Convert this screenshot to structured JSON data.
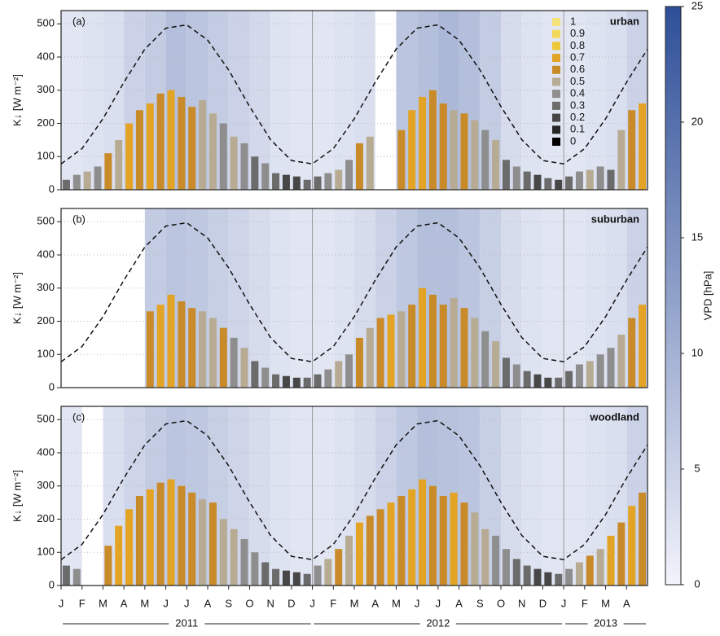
{
  "chart_data": [
    {
      "type": "bar",
      "label": "(a)",
      "site": "urban",
      "ylabel": "K↓ [W m⁻²]",
      "ylim": [
        0,
        540
      ],
      "yticks": [
        0,
        100,
        200,
        300,
        400,
        500
      ],
      "xlim": [
        0,
        28
      ],
      "x": [
        0.25,
        0.75,
        1.25,
        1.75,
        2.25,
        2.75,
        3.25,
        3.75,
        4.25,
        4.75,
        5.25,
        5.75,
        6.25,
        6.75,
        7.25,
        7.75,
        8.25,
        8.75,
        9.25,
        9.75,
        10.25,
        10.75,
        11.25,
        11.75,
        12.25,
        12.75,
        13.25,
        13.75,
        14.25,
        14.75,
        15.25,
        15.75,
        16.25,
        16.75,
        17.25,
        17.75,
        18.25,
        18.75,
        19.25,
        19.75,
        20.25,
        20.75,
        21.25,
        21.75,
        22.25,
        22.75,
        23.25,
        23.75,
        24.25,
        24.75,
        25.25,
        25.75,
        26.25,
        26.75,
        27.25,
        27.75
      ],
      "values": [
        30,
        45,
        55,
        70,
        110,
        150,
        200,
        240,
        260,
        290,
        300,
        280,
        250,
        270,
        230,
        200,
        160,
        140,
        100,
        80,
        50,
        45,
        40,
        30,
        40,
        50,
        60,
        90,
        140,
        160,
        null,
        null,
        180,
        240,
        280,
        300,
        260,
        240,
        230,
        210,
        180,
        150,
        90,
        70,
        55,
        45,
        35,
        30,
        40,
        55,
        60,
        70,
        60,
        180,
        240,
        260
      ],
      "ratio": [
        0.3,
        0.4,
        0.5,
        0.4,
        0.6,
        0.5,
        0.7,
        0.6,
        0.7,
        0.6,
        0.7,
        0.6,
        0.6,
        0.5,
        0.5,
        0.4,
        0.5,
        0.4,
        0.3,
        0.4,
        0.3,
        0.2,
        0.2,
        0.3,
        0.3,
        0.4,
        0.5,
        0.4,
        0.6,
        0.5,
        null,
        null,
        0.6,
        0.7,
        0.7,
        0.6,
        0.6,
        0.5,
        0.6,
        0.5,
        0.4,
        0.5,
        0.3,
        0.4,
        0.3,
        0.2,
        0.3,
        0.2,
        0.3,
        0.4,
        0.5,
        0.4,
        0.3,
        0.5,
        0.6,
        0.7
      ],
      "vpd_x": [
        0,
        1,
        2,
        3,
        4,
        5,
        6,
        7,
        8,
        9,
        10,
        11,
        12,
        13,
        14,
        15,
        16,
        17,
        18,
        19,
        20,
        21,
        22,
        23,
        24,
        25,
        26,
        27
      ],
      "vpd": [
        2,
        2.5,
        3,
        5,
        6,
        8,
        7,
        6,
        5,
        4,
        2.5,
        2,
        2,
        2.5,
        3,
        null,
        7,
        8,
        9,
        8,
        6,
        3.5,
        2.5,
        2,
        2,
        2.5,
        3,
        5
      ],
      "line": {
        "x": [
          0,
          1,
          2,
          3,
          4,
          5,
          6,
          7,
          8,
          9,
          10,
          11,
          12,
          13,
          14,
          15,
          16,
          17,
          18,
          19,
          20,
          21,
          22,
          23,
          24,
          25,
          26,
          27,
          28
        ],
        "values": [
          78,
          124,
          214,
          324,
          424,
          487,
          497,
          451,
          361,
          251,
          151,
          88,
          78,
          124,
          214,
          324,
          424,
          487,
          497,
          451,
          361,
          251,
          151,
          88,
          78,
          124,
          214,
          324,
          424
        ]
      }
    },
    {
      "type": "bar",
      "label": "(b)",
      "site": "suburban",
      "ylabel": "K↓ [W m⁻²]",
      "ylim": [
        0,
        540
      ],
      "yticks": [
        0,
        100,
        200,
        300,
        400,
        500
      ],
      "xlim": [
        0,
        28
      ],
      "x": [
        0.25,
        0.75,
        1.25,
        1.75,
        2.25,
        2.75,
        3.25,
        3.75,
        4.25,
        4.75,
        5.25,
        5.75,
        6.25,
        6.75,
        7.25,
        7.75,
        8.25,
        8.75,
        9.25,
        9.75,
        10.25,
        10.75,
        11.25,
        11.75,
        12.25,
        12.75,
        13.25,
        13.75,
        14.25,
        14.75,
        15.25,
        15.75,
        16.25,
        16.75,
        17.25,
        17.75,
        18.25,
        18.75,
        19.25,
        19.75,
        20.25,
        20.75,
        21.25,
        21.75,
        22.25,
        22.75,
        23.25,
        23.75,
        24.25,
        24.75,
        25.25,
        25.75,
        26.25,
        26.75,
        27.25,
        27.75
      ],
      "values": [
        null,
        null,
        null,
        null,
        null,
        null,
        null,
        null,
        230,
        250,
        280,
        260,
        240,
        230,
        210,
        180,
        150,
        120,
        80,
        60,
        40,
        35,
        30,
        30,
        40,
        55,
        80,
        100,
        150,
        180,
        210,
        220,
        230,
        250,
        300,
        280,
        250,
        270,
        240,
        210,
        170,
        140,
        90,
        70,
        50,
        40,
        30,
        30,
        50,
        70,
        80,
        100,
        120,
        160,
        210,
        250
      ],
      "ratio": [
        null,
        null,
        null,
        null,
        null,
        null,
        null,
        null,
        0.6,
        0.7,
        0.7,
        0.6,
        0.6,
        0.5,
        0.5,
        0.6,
        0.4,
        0.5,
        0.3,
        0.4,
        0.3,
        0.2,
        0.2,
        0.3,
        0.3,
        0.4,
        0.5,
        0.4,
        0.6,
        0.5,
        0.6,
        0.7,
        0.5,
        0.6,
        0.7,
        0.6,
        0.6,
        0.5,
        0.6,
        0.5,
        0.4,
        0.5,
        0.3,
        0.4,
        0.3,
        0.2,
        0.2,
        0.3,
        0.3,
        0.4,
        0.5,
        0.4,
        0.4,
        0.5,
        0.6,
        0.7
      ],
      "vpd_x": [
        0,
        1,
        2,
        3,
        4,
        5,
        6,
        7,
        8,
        9,
        10,
        11,
        12,
        13,
        14,
        15,
        16,
        17,
        18,
        19,
        20,
        21,
        22,
        23,
        24,
        25,
        26,
        27
      ],
      "vpd": [
        null,
        null,
        null,
        null,
        6,
        7,
        6.5,
        5.5,
        4.5,
        3.5,
        2.5,
        2,
        2,
        2.5,
        3.5,
        5,
        6.5,
        8,
        8,
        7,
        5.5,
        3.5,
        2.5,
        2,
        2,
        2.5,
        3,
        5
      ],
      "line": {
        "x": [
          0,
          1,
          2,
          3,
          4,
          5,
          6,
          7,
          8,
          9,
          10,
          11,
          12,
          13,
          14,
          15,
          16,
          17,
          18,
          19,
          20,
          21,
          22,
          23,
          24,
          25,
          26,
          27,
          28
        ],
        "values": [
          78,
          124,
          214,
          324,
          424,
          487,
          497,
          451,
          361,
          251,
          151,
          88,
          78,
          124,
          214,
          324,
          424,
          487,
          497,
          451,
          361,
          251,
          151,
          88,
          78,
          124,
          214,
          324,
          424
        ]
      }
    },
    {
      "type": "bar",
      "label": "(c)",
      "site": "woodland",
      "ylabel": "K↓ [W m⁻²]",
      "ylim": [
        0,
        540
      ],
      "yticks": [
        0,
        100,
        200,
        300,
        400,
        500
      ],
      "xlim": [
        0,
        28
      ],
      "x": [
        0.25,
        0.75,
        1.25,
        1.75,
        2.25,
        2.75,
        3.25,
        3.75,
        4.25,
        4.75,
        5.25,
        5.75,
        6.25,
        6.75,
        7.25,
        7.75,
        8.25,
        8.75,
        9.25,
        9.75,
        10.25,
        10.75,
        11.25,
        11.75,
        12.25,
        12.75,
        13.25,
        13.75,
        14.25,
        14.75,
        15.25,
        15.75,
        16.25,
        16.75,
        17.25,
        17.75,
        18.25,
        18.75,
        19.25,
        19.75,
        20.25,
        20.75,
        21.25,
        21.75,
        22.25,
        22.75,
        23.25,
        23.75,
        24.25,
        24.75,
        25.25,
        25.75,
        26.25,
        26.75,
        27.25,
        27.75
      ],
      "values": [
        60,
        50,
        null,
        null,
        120,
        180,
        230,
        270,
        290,
        310,
        320,
        300,
        280,
        260,
        250,
        200,
        170,
        140,
        100,
        70,
        50,
        45,
        40,
        35,
        60,
        80,
        110,
        150,
        190,
        210,
        230,
        250,
        270,
        290,
        320,
        300,
        270,
        280,
        250,
        220,
        170,
        150,
        110,
        80,
        60,
        50,
        40,
        35,
        50,
        70,
        90,
        110,
        150,
        190,
        240,
        280
      ],
      "ratio": [
        0.3,
        0.4,
        null,
        null,
        0.6,
        0.7,
        0.7,
        0.6,
        0.7,
        0.6,
        0.7,
        0.6,
        0.6,
        0.5,
        0.6,
        0.5,
        0.5,
        0.4,
        0.4,
        0.3,
        0.3,
        0.2,
        0.2,
        0.3,
        0.4,
        0.5,
        0.6,
        0.5,
        0.7,
        0.6,
        0.6,
        0.7,
        0.6,
        0.7,
        0.7,
        0.6,
        0.6,
        0.7,
        0.6,
        0.5,
        0.5,
        0.4,
        0.4,
        0.3,
        0.3,
        0.2,
        0.2,
        0.3,
        0.4,
        0.5,
        0.6,
        0.5,
        0.7,
        0.6,
        0.7,
        0.6
      ],
      "vpd_x": [
        0,
        1,
        2,
        3,
        4,
        5,
        6,
        7,
        8,
        9,
        10,
        11,
        12,
        13,
        14,
        15,
        16,
        17,
        18,
        19,
        20,
        21,
        22,
        23,
        24,
        25,
        26,
        27
      ],
      "vpd": [
        2,
        null,
        3,
        4.5,
        6,
        7,
        6.5,
        5.5,
        4.5,
        3.5,
        2.5,
        2,
        2,
        2.5,
        3.5,
        5,
        6.5,
        8,
        7.5,
        7,
        5.5,
        3.5,
        2.5,
        2,
        2,
        2.5,
        3,
        5
      ],
      "line": {
        "x": [
          0,
          1,
          2,
          3,
          4,
          5,
          6,
          7,
          8,
          9,
          10,
          11,
          12,
          13,
          14,
          15,
          16,
          17,
          18,
          19,
          20,
          21,
          22,
          23,
          24,
          25,
          26,
          27,
          28
        ],
        "values": [
          78,
          124,
          214,
          324,
          424,
          487,
          497,
          451,
          361,
          251,
          151,
          88,
          78,
          124,
          214,
          324,
          424,
          487,
          497,
          451,
          361,
          251,
          151,
          88,
          78,
          124,
          214,
          324,
          424
        ]
      }
    }
  ],
  "xticks": [
    {
      "value": 0,
      "label": "J"
    },
    {
      "value": 1,
      "label": "F"
    },
    {
      "value": 2,
      "label": "M"
    },
    {
      "value": 3,
      "label": "A"
    },
    {
      "value": 4,
      "label": "M"
    },
    {
      "value": 5,
      "label": "J"
    },
    {
      "value": 6,
      "label": "J"
    },
    {
      "value": 7,
      "label": "A"
    },
    {
      "value": 8,
      "label": "S"
    },
    {
      "value": 9,
      "label": "O"
    },
    {
      "value": 10,
      "label": "N"
    },
    {
      "value": 11,
      "label": "D"
    },
    {
      "value": 12,
      "label": "J"
    },
    {
      "value": 13,
      "label": "F"
    },
    {
      "value": 14,
      "label": "M"
    },
    {
      "value": 15,
      "label": "A"
    },
    {
      "value": 16,
      "label": "M"
    },
    {
      "value": 17,
      "label": "J"
    },
    {
      "value": 18,
      "label": "J"
    },
    {
      "value": 19,
      "label": "A"
    },
    {
      "value": 20,
      "label": "S"
    },
    {
      "value": 21,
      "label": "O"
    },
    {
      "value": 22,
      "label": "N"
    },
    {
      "value": 23,
      "label": "D"
    },
    {
      "value": 24,
      "label": "J"
    },
    {
      "value": 25,
      "label": "F"
    },
    {
      "value": 26,
      "label": "M"
    },
    {
      "value": 27,
      "label": "A"
    }
  ],
  "years": [
    {
      "label": "2011",
      "range": [
        0,
        12
      ]
    },
    {
      "label": "2012",
      "range": [
        12,
        24
      ]
    },
    {
      "label": "2013",
      "range": [
        24,
        28
      ]
    }
  ],
  "legend": {
    "levels": [
      1,
      0.9,
      0.8,
      0.7,
      0.6,
      0.5,
      0.4,
      0.3,
      0.2,
      0.1,
      0
    ],
    "colors": [
      "#f6e27a",
      "#f3d75a",
      "#efc83a",
      "#e3a425",
      "#c98b2a",
      "#b7ab94",
      "#8e8e8e",
      "#6b6b6b",
      "#474747",
      "#262626",
      "#000000"
    ]
  },
  "colorbar": {
    "label": "VPD [hPa]",
    "clim": [
      0,
      25
    ],
    "ticks": [
      0,
      5,
      10,
      15,
      20,
      25
    ],
    "colors": [
      "#f2f3fb",
      "#2e4f98"
    ]
  }
}
